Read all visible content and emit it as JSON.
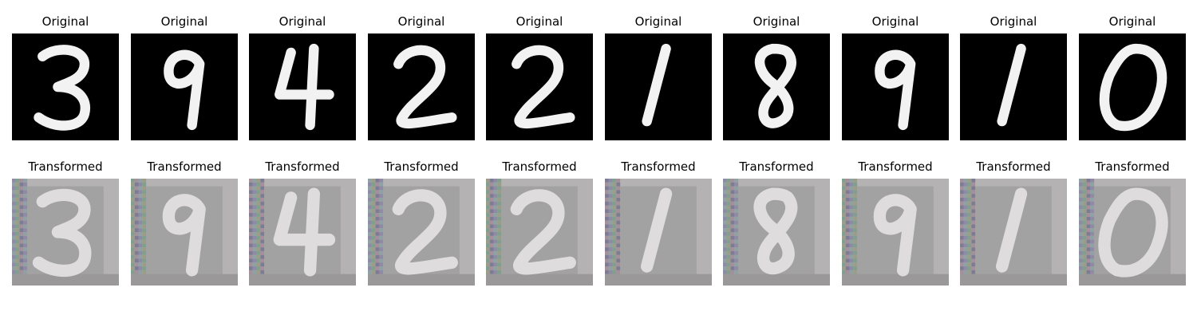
{
  "original_title": "Original",
  "transformed_title": "Transformed",
  "digits": [
    3,
    9,
    4,
    2,
    2,
    1,
    8,
    9,
    1,
    0
  ],
  "panels": [
    {
      "original_title": "Original",
      "transformed_title": "Transformed"
    },
    {
      "original_title": "Original",
      "transformed_title": "Transformed"
    },
    {
      "original_title": "Original",
      "transformed_title": "Transformed"
    },
    {
      "original_title": "Original",
      "transformed_title": "Transformed"
    },
    {
      "original_title": "Original",
      "transformed_title": "Transformed"
    },
    {
      "original_title": "Original",
      "transformed_title": "Transformed"
    },
    {
      "original_title": "Original",
      "transformed_title": "Transformed"
    },
    {
      "original_title": "Original",
      "transformed_title": "Transformed"
    },
    {
      "original_title": "Original",
      "transformed_title": "Transformed"
    },
    {
      "original_title": "Original",
      "transformed_title": "Transformed"
    }
  ],
  "colors": {
    "original_background": "#000000",
    "original_stroke": "#f2f2f2",
    "transformed_background": "#b4b2b2",
    "transformed_stroke": "#e4e2e2"
  }
}
